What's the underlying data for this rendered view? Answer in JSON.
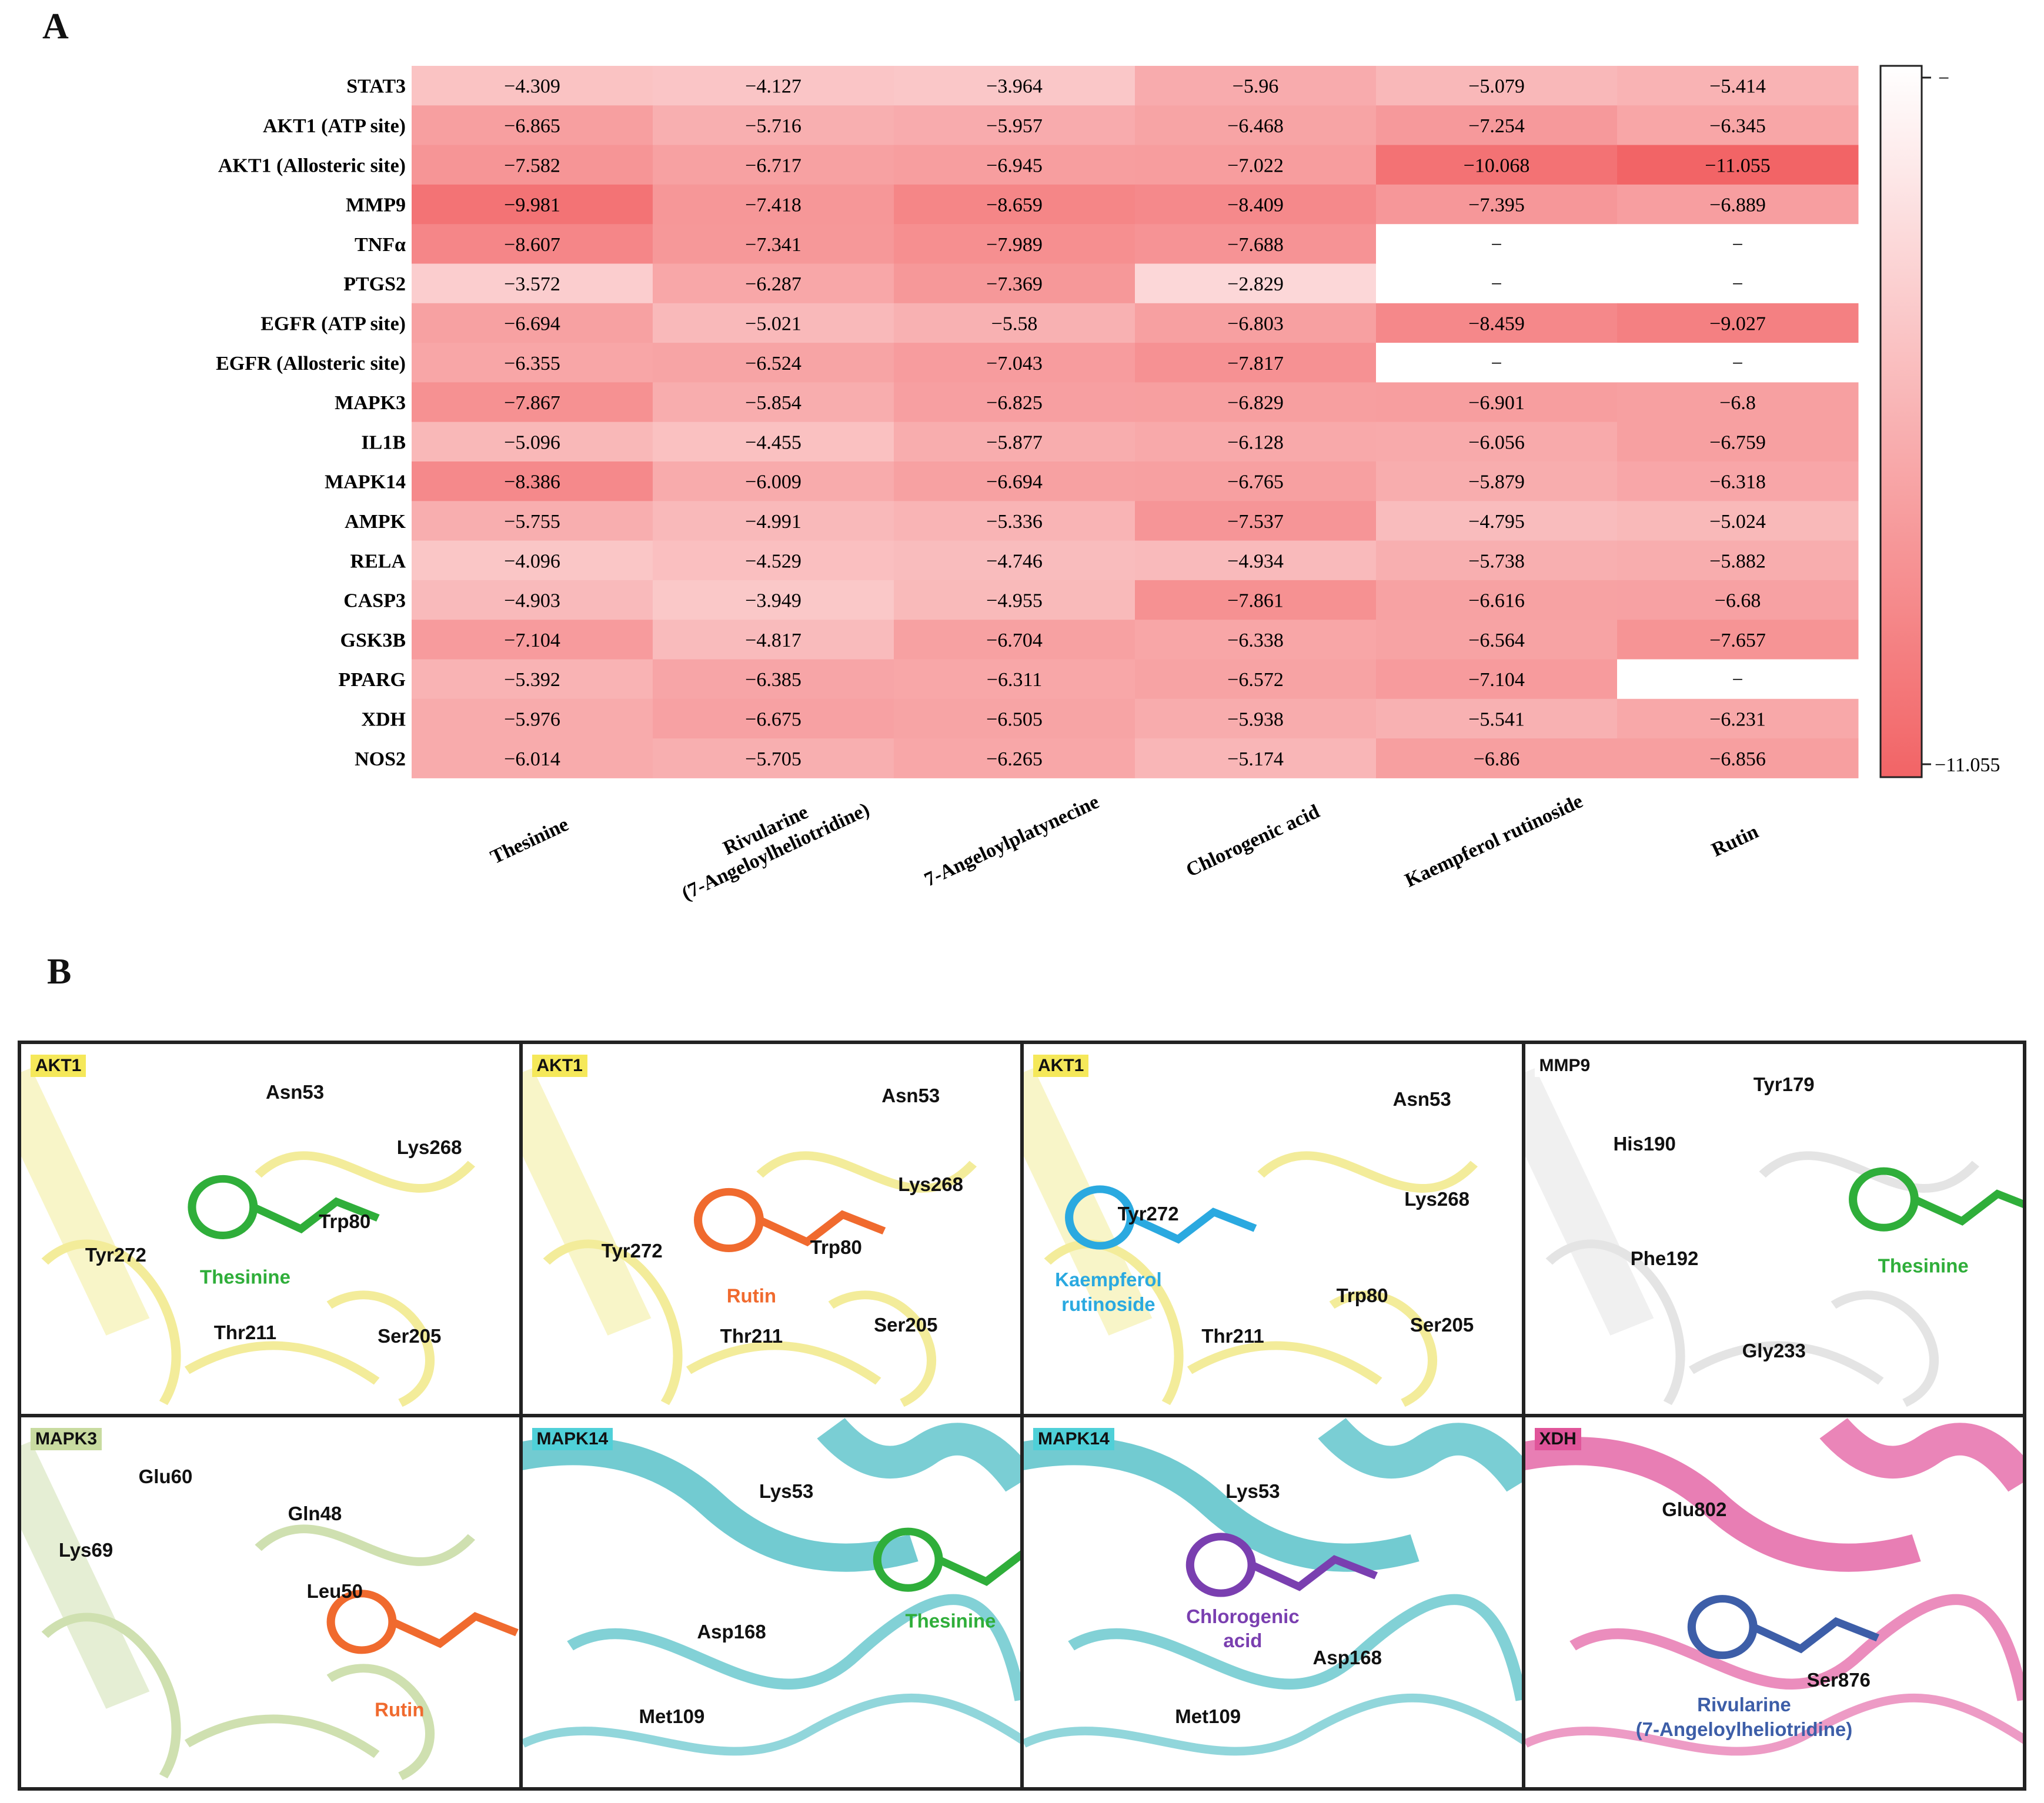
{
  "panel_a_label": "A",
  "panel_b_label": "B",
  "chart_data": {
    "type": "heatmap",
    "title": "",
    "rows": [
      "STAT3",
      "AKT1 (ATP site)",
      "AKT1 (Allosteric site)",
      "MMP9",
      "TNFα",
      "PTGS2",
      "EGFR (ATP site)",
      "EGFR (Allosteric site)",
      "MAPK3",
      "IL1B",
      "MAPK14",
      "AMPK",
      "RELA",
      "CASP3",
      "GSK3B",
      "PPARG",
      "XDH",
      "NOS2"
    ],
    "columns": [
      "Thesinine",
      "Rivularine\n(7-Angeloylheliotridine)",
      "7-Angeloylplatynecine",
      "Chlorogenic acid",
      "Kaempferol rutinoside",
      "Rutin"
    ],
    "values": [
      [
        "−4.309",
        "−4.127",
        "−3.964",
        "−5.96",
        "−5.079",
        "−5.414"
      ],
      [
        "−6.865",
        "−5.716",
        "−5.957",
        "−6.468",
        "−7.254",
        "−6.345"
      ],
      [
        "−7.582",
        "−6.717",
        "−6.945",
        "−7.022",
        "−10.068",
        "−11.055"
      ],
      [
        "−9.981",
        "−7.418",
        "−8.659",
        "−8.409",
        "−7.395",
        "−6.889"
      ],
      [
        "−8.607",
        "−7.341",
        "−7.989",
        "−7.688",
        "−",
        "−"
      ],
      [
        "−3.572",
        "−6.287",
        "−7.369",
        "−2.829",
        "−",
        "−"
      ],
      [
        "−6.694",
        "−5.021",
        "−5.58",
        "−6.803",
        "−8.459",
        "−9.027"
      ],
      [
        "−6.355",
        "−6.524",
        "−7.043",
        "−7.817",
        "−",
        "−"
      ],
      [
        "−7.867",
        "−5.854",
        "−6.825",
        "−6.829",
        "−6.901",
        "−6.8"
      ],
      [
        "−5.096",
        "−4.455",
        "−5.877",
        "−6.128",
        "−6.056",
        "−6.759"
      ],
      [
        "−8.386",
        "−6.009",
        "−6.694",
        "−6.765",
        "−5.879",
        "−6.318"
      ],
      [
        "−5.755",
        "−4.991",
        "−5.336",
        "−7.537",
        "−4.795",
        "−5.024"
      ],
      [
        "−4.096",
        "−4.529",
        "−4.746",
        "−4.934",
        "−5.738",
        "−5.882"
      ],
      [
        "−4.903",
        "−3.949",
        "−4.955",
        "−7.861",
        "−6.616",
        "−6.68"
      ],
      [
        "−7.104",
        "−4.817",
        "−6.704",
        "−6.338",
        "−6.564",
        "−7.657"
      ],
      [
        "−5.392",
        "−6.385",
        "−6.311",
        "−6.572",
        "−7.104",
        "−"
      ],
      [
        "−5.976",
        "−6.675",
        "−6.505",
        "−5.938",
        "−5.541",
        "−6.231"
      ],
      [
        "−6.014",
        "−5.705",
        "−6.265",
        "−5.174",
        "−6.86",
        "−6.856"
      ]
    ],
    "colorbar": {
      "max_label": "−",
      "min_label": "−11.055",
      "min_value": -11.055,
      "max_value": 0
    },
    "colors": {
      "low": "#f26466",
      "high": "#ffffff"
    }
  },
  "docking_panels": [
    {
      "protein": "AKT1",
      "tag_color": "#f5e85a",
      "ligand": "Thesinine",
      "ligand_color": "#2fae3a",
      "residues": [
        "Asn53",
        "Lys268",
        "Trp80",
        "Tyr272",
        "Thr211",
        "Ser205"
      ]
    },
    {
      "protein": "AKT1",
      "tag_color": "#f5e85a",
      "ligand": "Rutin",
      "ligand_color": "#f06a2e",
      "residues": [
        "Asn53",
        "Lys268",
        "Tyr272",
        "Trp80",
        "Thr211",
        "Ser205"
      ]
    },
    {
      "protein": "AKT1",
      "tag_color": "#f5e85a",
      "ligand": "Kaempferol\nrutinoside",
      "ligand_color": "#2aa9e0",
      "residues": [
        "Asn53",
        "Tyr272",
        "Lys268",
        "Trp80",
        "Thr211",
        "Ser205"
      ]
    },
    {
      "protein": "MMP9",
      "tag_color": "#ffffff",
      "ligand": "Thesinine",
      "ligand_color": "#2fae3a",
      "residues": [
        "Tyr179",
        "His190",
        "Phe192",
        "Gly233"
      ]
    },
    {
      "protein": "MAPK3",
      "tag_color": "#c8dba0",
      "ligand": "Rutin",
      "ligand_color": "#f06a2e",
      "residues": [
        "Glu60",
        "Gln48",
        "Lys69",
        "Leu50"
      ]
    },
    {
      "protein": "MAPK14",
      "tag_color": "#4fd0d8",
      "ligand": "Thesinine",
      "ligand_color": "#2fae3a",
      "residues": [
        "Lys53",
        "Asp168",
        "Met109"
      ]
    },
    {
      "protein": "MAPK14",
      "tag_color": "#4fd0d8",
      "ligand": "Chlorogenic\nacid",
      "ligand_color": "#7a3fb0",
      "residues": [
        "Lys53",
        "Asp168",
        "Met109"
      ]
    },
    {
      "protein": "XDH",
      "tag_color": "#e0559a",
      "ligand": "Rivularine\n(7-Angeloylheliotridine)",
      "ligand_color": "#3d5ea8",
      "residues": [
        "Glu802",
        "Ser876"
      ]
    }
  ]
}
